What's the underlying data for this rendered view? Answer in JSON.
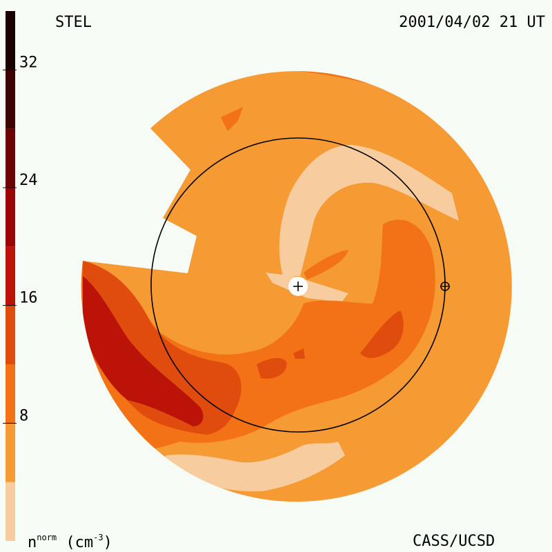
{
  "header": {
    "observatory": "STEL",
    "datetime": "2001/04/02 21 UT"
  },
  "footer": {
    "credit": "CASS/UCSD",
    "units_base": "n",
    "units_sup": "norm",
    "units_paren": "(cm",
    "units_exp": "-3",
    "units_close": ")"
  },
  "chart_data": {
    "type": "heatmap",
    "colorbar": {
      "ticks": [
        8,
        16,
        24,
        32
      ],
      "tick_labels": [
        "8",
        "16",
        "24",
        "32"
      ],
      "range": [
        0,
        36
      ],
      "levels": [
        {
          "from": 0,
          "to": 4,
          "color": "#f7cda0"
        },
        {
          "from": 4,
          "to": 8,
          "color": "#f69a34"
        },
        {
          "from": 8,
          "to": 12,
          "color": "#f47216"
        },
        {
          "from": 12,
          "to": 16,
          "color": "#df4c0e"
        },
        {
          "from": 16,
          "to": 20,
          "color": "#bc1308"
        },
        {
          "from": 20,
          "to": 24,
          "color": "#9a0606"
        },
        {
          "from": 24,
          "to": 28,
          "color": "#6c0405"
        },
        {
          "from": 28,
          "to": 32,
          "color": "#3d0202"
        },
        {
          "from": 32,
          "to": 36,
          "color": "#1a0000"
        }
      ]
    },
    "markers": [
      "sun-center",
      "earth"
    ]
  }
}
